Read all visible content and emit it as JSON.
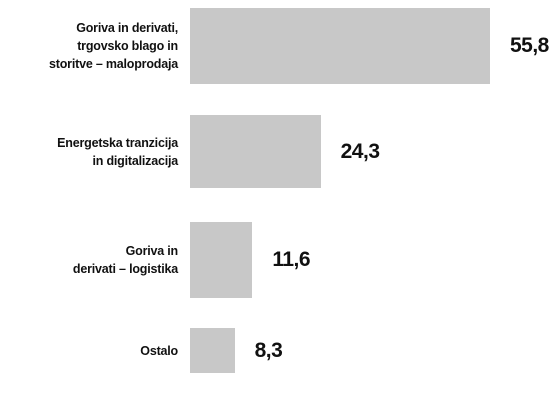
{
  "chart_data": {
    "type": "bar",
    "orientation": "horizontal",
    "categories": [
      "Goriva in derivati,\ntrgovsko blago in\nstoritve – maloprodaja",
      "Energetska tranzicija\nin digitalizacija",
      "Goriva in\nderivati – logistika",
      "Ostalo"
    ],
    "values": [
      55.8,
      24.3,
      11.6,
      8.3
    ],
    "value_labels": [
      "55,8",
      "24,3",
      "11,6",
      "8,3"
    ],
    "color": "#c8c8c8"
  }
}
